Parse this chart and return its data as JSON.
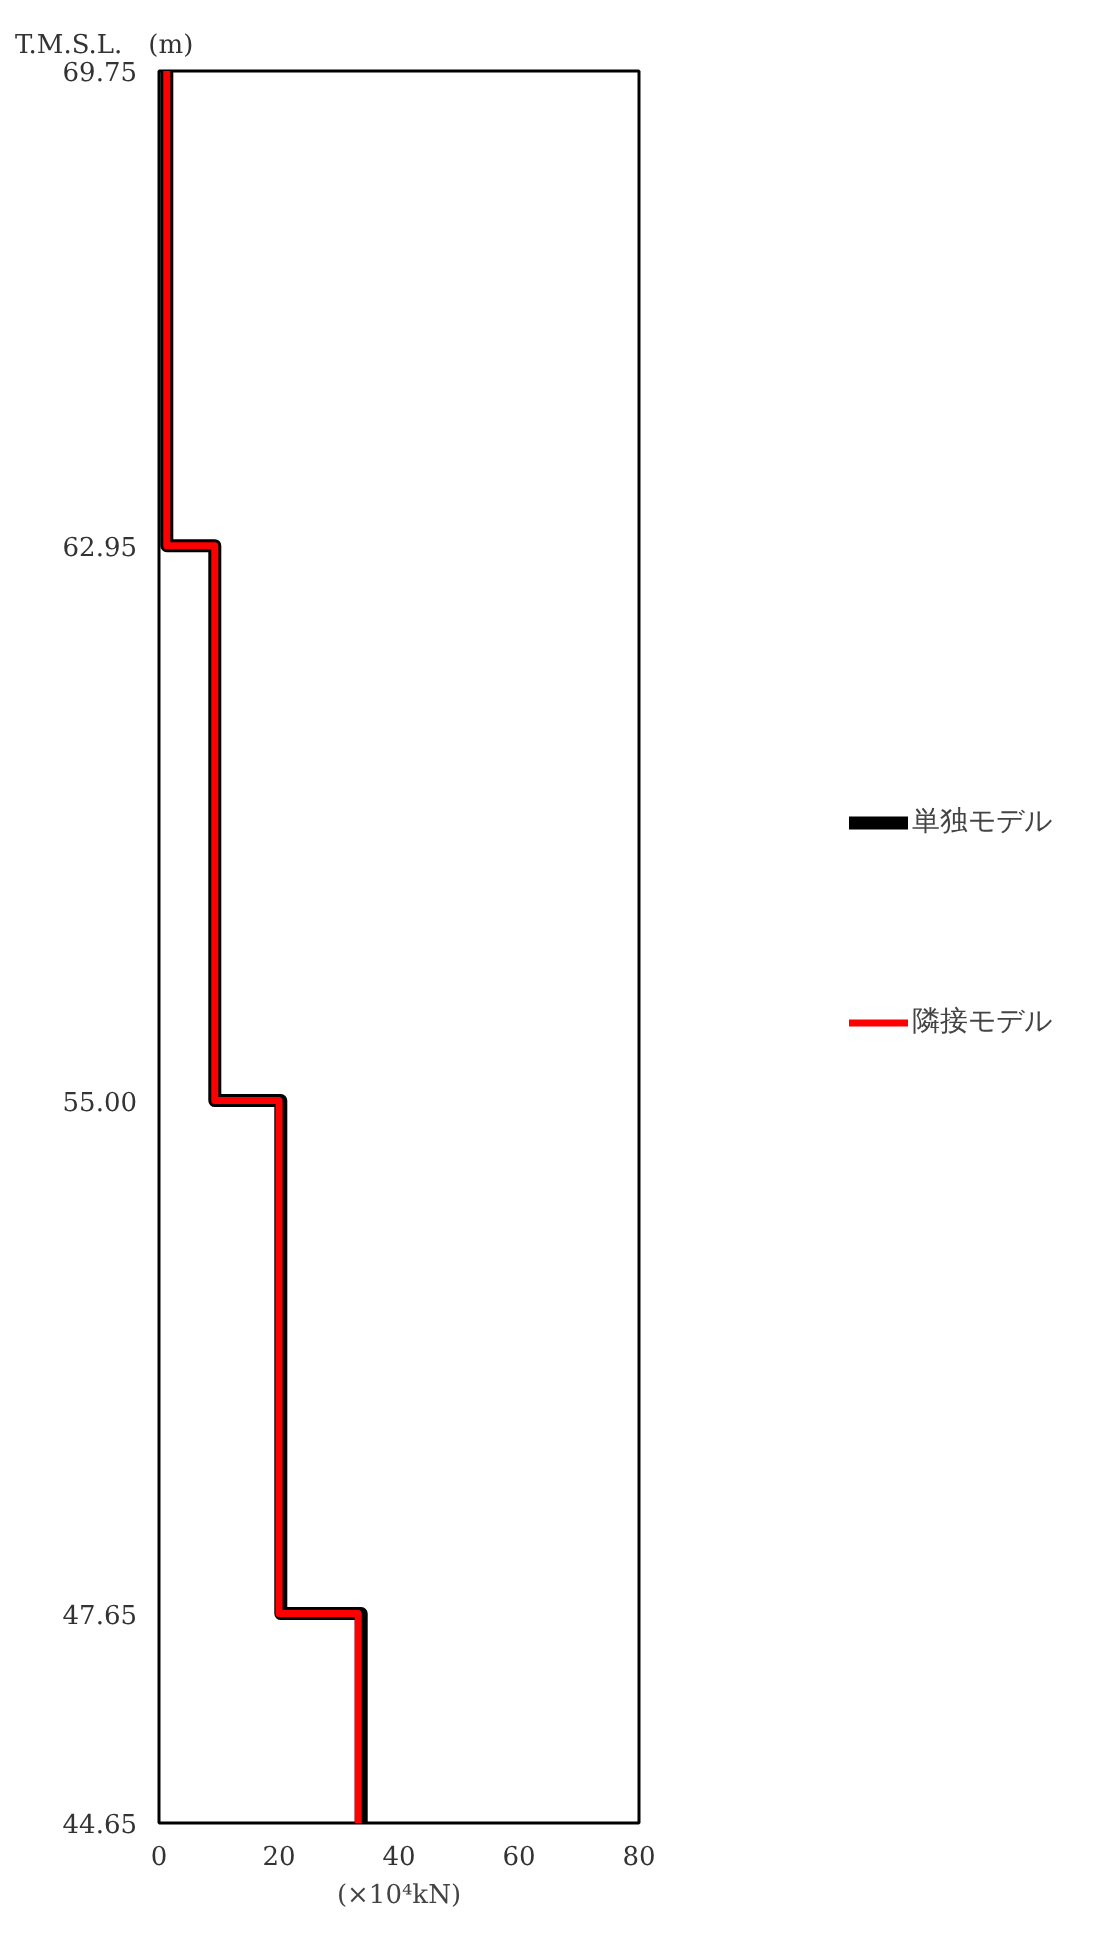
{
  "chart_data": {
    "type": "line",
    "ylabel": "T.M.S.L.　(m)",
    "xlabel": "(×10⁴kN)",
    "series": [
      {
        "name": "単独モデル",
        "color": "#000000",
        "x": [
          1.3,
          1.3,
          9.3,
          9.3,
          20.3,
          20.3,
          33.7,
          33.7
        ],
        "values": [
          69.75,
          62.95,
          62.95,
          55.0,
          55.0,
          47.65,
          47.65,
          44.65
        ]
      },
      {
        "name": "隣接モデル",
        "color": "#ff0000",
        "x": [
          1.3,
          1.3,
          9.3,
          9.3,
          20.0,
          20.0,
          33.2,
          33.2
        ],
        "values": [
          69.75,
          62.95,
          62.95,
          55.0,
          55.0,
          47.65,
          47.65,
          44.65
        ]
      }
    ],
    "xlim": [
      0,
      80
    ],
    "xticks": [
      0,
      20,
      40,
      60,
      80
    ],
    "ylim": [
      44.65,
      69.75
    ],
    "yticks": [
      {
        "value": 44.65,
        "label": "44.65"
      },
      {
        "value": 47.65,
        "label": "47.65"
      },
      {
        "value": 55.0,
        "label": "55.00"
      },
      {
        "value": 62.95,
        "label": "62.95"
      },
      {
        "value": 69.75,
        "label": "69.75"
      }
    ],
    "grid": false,
    "legend": "right",
    "marker": "none",
    "line_style": "solid"
  }
}
